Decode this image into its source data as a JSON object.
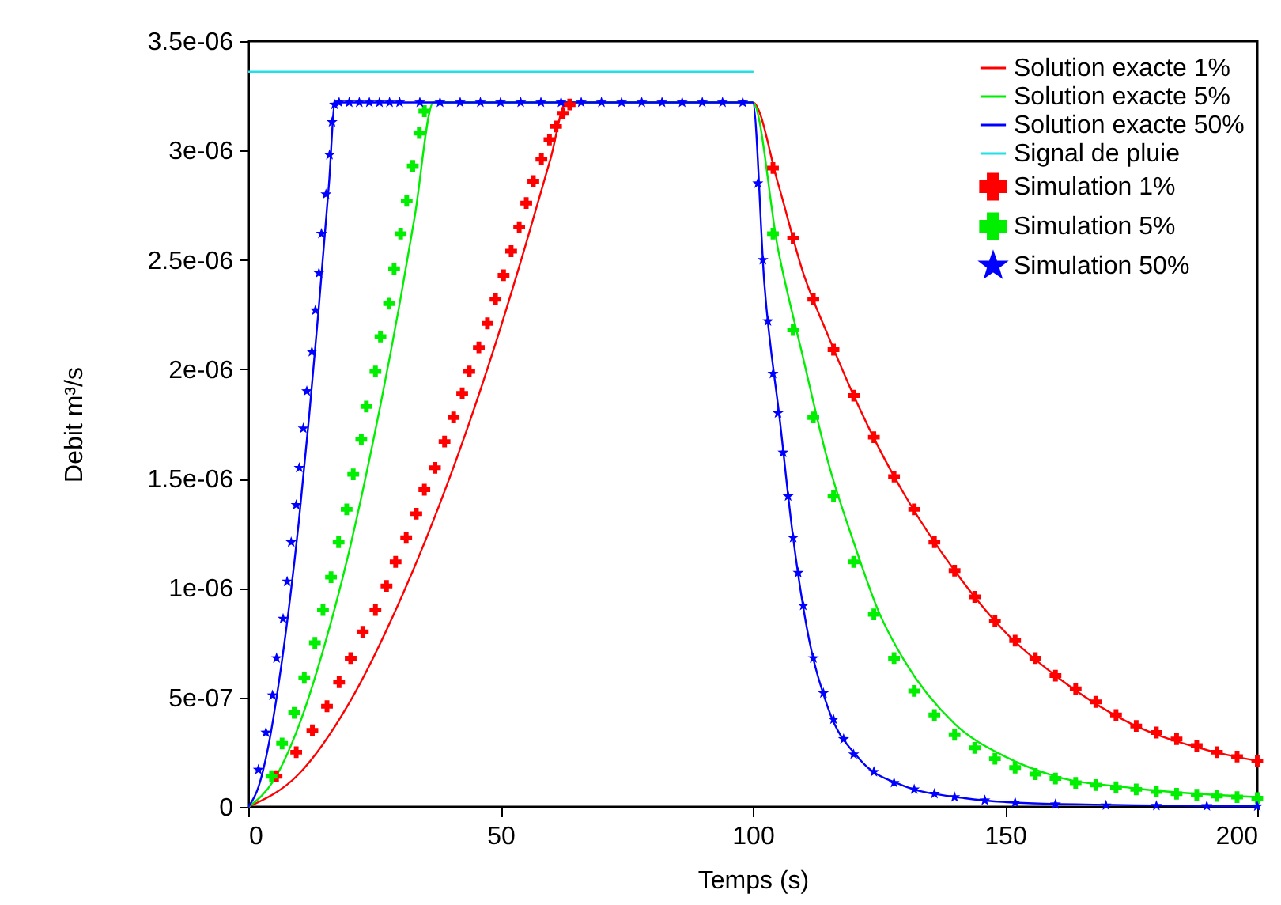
{
  "chart_data": {
    "type": "line",
    "xlabel": "Temps (s)",
    "ylabel": "Debit m³/s",
    "xlim": [
      0,
      200
    ],
    "xticks": [
      0,
      50,
      100,
      150,
      200
    ],
    "ylim": [
      0,
      3.5e-06
    ],
    "yticks": [
      0,
      {
        "value": 5e-07,
        "label": "5e-07"
      },
      {
        "value": 1e-06,
        "label": "1e-06"
      },
      {
        "value": 1.5e-06,
        "label": "1.5e-06"
      },
      {
        "value": 2e-06,
        "label": "2e-06"
      },
      {
        "value": 2.5e-06,
        "label": "2.5e-06"
      },
      {
        "value": 3e-06,
        "label": "3e-06"
      },
      {
        "value": 3.5e-06,
        "label": "3.5e-06"
      }
    ],
    "grid": false,
    "legend": "top right",
    "line_style": "solid",
    "series": [
      {
        "name": "Solution exacte 1%",
        "color": "#ff0000",
        "type": "line",
        "x": [
          0,
          10,
          20,
          30,
          40,
          50,
          55,
          60,
          63,
          100,
          105,
          110,
          115,
          120,
          125,
          130,
          140,
          150,
          160,
          175,
          190,
          200
        ],
        "values": [
          0,
          1.5e-07,
          4.75e-07,
          9.4e-07,
          1.51e-06,
          2.19e-06,
          2.57e-06,
          2.97e-06,
          3.22e-06,
          3.22e-06,
          2.85e-06,
          2.44e-06,
          2.15e-06,
          1.88e-06,
          1.64e-06,
          1.43e-06,
          1.08e-06,
          8e-07,
          6e-07,
          3.8e-07,
          2.6e-07,
          2.1e-07
        ]
      },
      {
        "name": "Solution exacte 5%",
        "color": "#00ee00",
        "type": "line",
        "x": [
          0,
          5,
          10,
          15,
          20,
          25,
          30,
          33,
          36.7,
          100,
          105,
          110,
          115,
          120,
          125,
          130,
          140,
          150,
          160,
          175,
          200
        ],
        "values": [
          0,
          1.2e-07,
          3.7e-07,
          7.3e-07,
          1.17e-06,
          1.7e-06,
          2.3e-06,
          2.7e-06,
          3.22e-06,
          3.22e-06,
          2.55e-06,
          2.05e-06,
          1.57e-06,
          1.21e-06,
          8.9e-07,
          6.7e-07,
          3.8e-07,
          2.3e-07,
          1.4e-07,
          8.7e-08,
          4.5e-08
        ]
      },
      {
        "name": "Solution exacte 50%",
        "color": "#0000ff",
        "type": "line",
        "x": [
          0,
          2,
          4,
          6,
          8,
          10,
          12,
          14,
          16,
          17.2,
          100,
          102.3,
          105.4,
          108,
          110.7,
          114.8,
          121.1,
          129.5,
          142,
          157.7,
          200
        ],
        "values": [
          0,
          9e-08,
          2.8e-07,
          5.6e-07,
          9e-07,
          1.3e-06,
          1.77e-06,
          2.29e-06,
          2.85e-06,
          3.22e-06,
          3.22e-06,
          2.39e-06,
          1.76e-06,
          1.23e-06,
          8.2e-07,
          4.6e-07,
          2.2e-07,
          1e-07,
          4e-08,
          1.5e-08,
          3e-09
        ]
      },
      {
        "name": "Signal de pluie",
        "color": "#22e0e6",
        "type": "line",
        "x": [
          0,
          100
        ],
        "values": [
          3.36e-06,
          3.36e-06
        ]
      },
      {
        "name": "Simulation 1%",
        "color": "#ff0000",
        "type": "scatter",
        "marker": "cross",
        "x": [
          5.6,
          9.5,
          12.7,
          15.6,
          18,
          20.3,
          22.7,
          25.2,
          27.4,
          29.2,
          31.3,
          33.3,
          34.9,
          37,
          38.9,
          40.7,
          42.4,
          43.8,
          45.7,
          47.4,
          49,
          50.6,
          52.1,
          53.7,
          55.1,
          56.5,
          58.1,
          59.7,
          61,
          62.4,
          63.7,
          104,
          108,
          112,
          116,
          120,
          124,
          128,
          132,
          136,
          140,
          144,
          148,
          152,
          156,
          160,
          164,
          168,
          172,
          176,
          180,
          184,
          188,
          192,
          196,
          200
        ],
        "values": [
          1.4e-07,
          2.5e-07,
          3.5e-07,
          4.6e-07,
          5.7e-07,
          6.8e-07,
          8e-07,
          9e-07,
          1.01e-06,
          1.12e-06,
          1.23e-06,
          1.34e-06,
          1.45e-06,
          1.55e-06,
          1.67e-06,
          1.78e-06,
          1.89e-06,
          1.99e-06,
          2.1e-06,
          2.21e-06,
          2.32e-06,
          2.43e-06,
          2.54e-06,
          2.65e-06,
          2.76e-06,
          2.86e-06,
          2.96e-06,
          3.05e-06,
          3.11e-06,
          3.17e-06,
          3.21e-06,
          2.92e-06,
          2.6e-06,
          2.32e-06,
          2.09e-06,
          1.88e-06,
          1.69e-06,
          1.51e-06,
          1.36e-06,
          1.21e-06,
          1.08e-06,
          9.6e-07,
          8.5e-07,
          7.6e-07,
          6.8e-07,
          6e-07,
          5.4e-07,
          4.8e-07,
          4.2e-07,
          3.7e-07,
          3.4e-07,
          3.1e-07,
          2.8e-07,
          2.5e-07,
          2.3e-07,
          2.1e-07
        ]
      },
      {
        "name": "Simulation 5%",
        "color": "#00ee00",
        "type": "scatter",
        "marker": "x",
        "x": [
          4.6,
          6.7,
          9.1,
          11.1,
          13.2,
          14.8,
          16.4,
          17.9,
          19.5,
          20.8,
          22.4,
          23.4,
          25.2,
          26.2,
          27.9,
          28.9,
          30.2,
          31.4,
          32.6,
          33.9,
          34.9,
          104,
          108,
          112,
          116,
          120,
          124,
          128,
          132,
          136,
          140,
          144,
          148,
          152,
          156,
          160,
          164,
          168,
          172,
          176,
          180,
          184,
          188,
          192,
          196,
          200
        ],
        "values": [
          1.4e-07,
          2.9e-07,
          4.3e-07,
          5.9e-07,
          7.5e-07,
          9e-07,
          1.05e-06,
          1.21e-06,
          1.36e-06,
          1.52e-06,
          1.68e-06,
          1.83e-06,
          1.99e-06,
          2.15e-06,
          2.3e-06,
          2.46e-06,
          2.62e-06,
          2.77e-06,
          2.93e-06,
          3.08e-06,
          3.18e-06,
          2.62e-06,
          2.18e-06,
          1.78e-06,
          1.42e-06,
          1.12e-06,
          8.8e-07,
          6.8e-07,
          5.3e-07,
          4.2e-07,
          3.3e-07,
          2.7e-07,
          2.2e-07,
          1.8e-07,
          1.5e-07,
          1.3e-07,
          1.1e-07,
          1e-07,
          9e-08,
          8e-08,
          7e-08,
          6e-08,
          5.5e-08,
          5e-08,
          4.5e-08,
          4e-08
        ]
      },
      {
        "name": "Simulation 50%",
        "color": "#0000ff",
        "type": "scatter",
        "marker": "star",
        "x": [
          2,
          3.5,
          4.8,
          5.6,
          6.9,
          7.7,
          8.5,
          9.5,
          10.1,
          10.9,
          11.6,
          12.6,
          13.3,
          14,
          14.5,
          15.4,
          16.1,
          16.6,
          17.1,
          18,
          20,
          22,
          24,
          26,
          28,
          30,
          34,
          38,
          42,
          46,
          50,
          54,
          58,
          62,
          66,
          70,
          74,
          78,
          82,
          86,
          90,
          94,
          98,
          101,
          102,
          103,
          104,
          105,
          106,
          107,
          108,
          109,
          110,
          112,
          114,
          116,
          118,
          120,
          124,
          128,
          132,
          136,
          140,
          146,
          152,
          160,
          170,
          180,
          190,
          200
        ],
        "values": [
          1.7e-07,
          3.4e-07,
          5.1e-07,
          6.8e-07,
          8.6e-07,
          1.03e-06,
          1.21e-06,
          1.38e-06,
          1.55e-06,
          1.73e-06,
          1.9e-06,
          2.08e-06,
          2.27e-06,
          2.44e-06,
          2.62e-06,
          2.8e-06,
          2.98e-06,
          3.13e-06,
          3.21e-06,
          3.22e-06,
          3.22e-06,
          3.22e-06,
          3.22e-06,
          3.22e-06,
          3.22e-06,
          3.22e-06,
          3.22e-06,
          3.22e-06,
          3.22e-06,
          3.22e-06,
          3.22e-06,
          3.22e-06,
          3.22e-06,
          3.22e-06,
          3.22e-06,
          3.22e-06,
          3.22e-06,
          3.22e-06,
          3.22e-06,
          3.22e-06,
          3.22e-06,
          3.22e-06,
          3.22e-06,
          2.85e-06,
          2.5e-06,
          2.22e-06,
          1.98e-06,
          1.8e-06,
          1.62e-06,
          1.42e-06,
          1.23e-06,
          1.07e-06,
          9.2e-07,
          6.8e-07,
          5.2e-07,
          4e-07,
          3.1e-07,
          2.4e-07,
          1.6e-07,
          1.1e-07,
          8e-08,
          6e-08,
          4.5e-08,
          3e-08,
          2e-08,
          1.2e-08,
          7e-09,
          5e-09,
          4e-09,
          3e-09
        ]
      }
    ]
  }
}
